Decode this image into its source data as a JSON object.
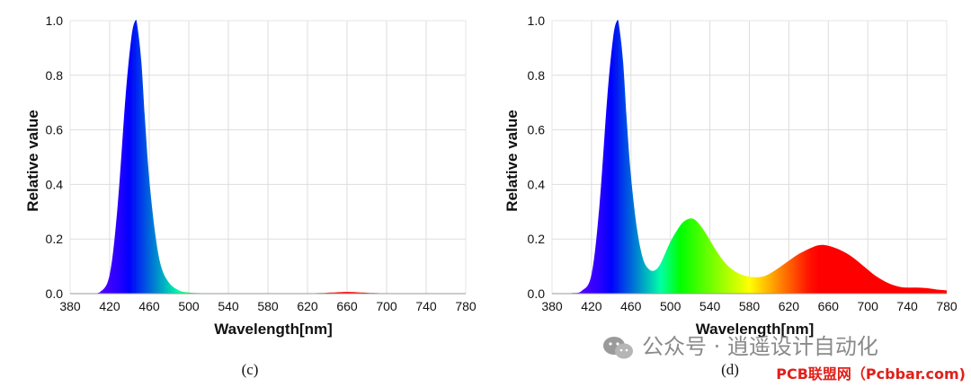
{
  "chart_data": [
    {
      "type": "area",
      "panel_label": "(c)",
      "xlabel": "Wavelength[nm]",
      "ylabel": "Relative value",
      "xlim": [
        380,
        780
      ],
      "ylim": [
        0,
        1.0
      ],
      "xticks": [
        380,
        420,
        460,
        500,
        540,
        580,
        620,
        660,
        700,
        740,
        780
      ],
      "yticks": [
        "0.0",
        "0.2",
        "0.4",
        "0.6",
        "0.8",
        "1.0"
      ],
      "grid": true,
      "fill": "spectral",
      "x": [
        380,
        400,
        410,
        420,
        428,
        436,
        442,
        446,
        448,
        452,
        456,
        460,
        466,
        472,
        480,
        490,
        500,
        520,
        560,
        600,
        630,
        650,
        660,
        670,
        690,
        720,
        780
      ],
      "y": [
        0,
        0,
        0.005,
        0.07,
        0.32,
        0.72,
        0.94,
        1.0,
        0.98,
        0.85,
        0.62,
        0.42,
        0.22,
        0.1,
        0.04,
        0.012,
        0.004,
        0.001,
        0,
        0,
        0.002,
        0.005,
        0.006,
        0.005,
        0.002,
        0,
        0
      ]
    },
    {
      "type": "area",
      "panel_label": "(d)",
      "xlabel": "Wavelength[nm]",
      "ylabel": "Relative value",
      "xlim": [
        380,
        780
      ],
      "ylim": [
        0,
        1.0
      ],
      "xticks": [
        380,
        420,
        460,
        500,
        540,
        580,
        620,
        660,
        700,
        740,
        780
      ],
      "yticks": [
        "0.0",
        "0.2",
        "0.4",
        "0.6",
        "0.8",
        "1.0"
      ],
      "grid": true,
      "fill": "spectral",
      "x": [
        380,
        400,
        410,
        420,
        428,
        436,
        442,
        446,
        448,
        452,
        456,
        460,
        466,
        472,
        478,
        484,
        490,
        500,
        510,
        516,
        522,
        528,
        536,
        546,
        556,
        566,
        576,
        586,
        596,
        606,
        616,
        630,
        644,
        652,
        660,
        672,
        684,
        696,
        708,
        720,
        732,
        740,
        750,
        760,
        770,
        780
      ],
      "y": [
        0,
        0.002,
        0.01,
        0.07,
        0.32,
        0.72,
        0.94,
        1.0,
        0.98,
        0.85,
        0.62,
        0.43,
        0.24,
        0.13,
        0.09,
        0.085,
        0.11,
        0.19,
        0.25,
        0.27,
        0.275,
        0.26,
        0.22,
        0.16,
        0.11,
        0.08,
        0.065,
        0.06,
        0.065,
        0.085,
        0.11,
        0.145,
        0.17,
        0.178,
        0.175,
        0.16,
        0.135,
        0.1,
        0.065,
        0.04,
        0.025,
        0.022,
        0.022,
        0.02,
        0.015,
        0.012
      ]
    }
  ],
  "watermark": {
    "caption": "公众号 · 逍遥设计自动化",
    "source": "PCB联盟网（Pcbbar.com)"
  },
  "colors": {
    "grid": "#dddddd",
    "axis": "#999999",
    "watermark_text": "#8a8a8a",
    "watermark_red": "#e0201a"
  }
}
